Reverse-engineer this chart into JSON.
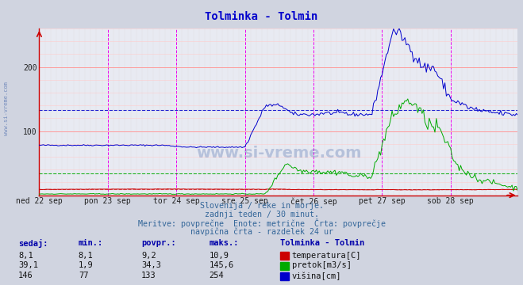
{
  "title": "Tolminka - Tolmin",
  "title_color": "#0000cc",
  "bg_color": "#d0d4e0",
  "plot_bg_color": "#e8eaf2",
  "temp_color": "#cc0000",
  "pretok_color": "#00aa00",
  "visina_color": "#0000cc",
  "temp_avg": 9.2,
  "pretok_avg": 34.3,
  "visina_avg": 133,
  "ylim": [
    0,
    260
  ],
  "xlabel_days": [
    "ned 22 sep",
    "pon 23 sep",
    "tor 24 sep",
    "sre 25 sep",
    "čet 26 sep",
    "pet 27 sep",
    "sob 28 sep"
  ],
  "annotation_text1": "Slovenija / reke in morje.",
  "annotation_text2": "zadnji teden / 30 minut.",
  "annotation_text3": "Meritve: povprečne  Enote: metrične  Črta: povprečje",
  "annotation_text4": "navpična črta - razdelek 24 ur",
  "table_headers": [
    "sedaj:",
    "min.:",
    "povpr.:",
    "maks.:",
    "Tolminka - Tolmin"
  ],
  "table_row1": [
    "8,1",
    "8,1",
    "9,2",
    "10,9",
    "temperatura[C]"
  ],
  "table_row2": [
    "39,1",
    "1,9",
    "34,3",
    "145,6",
    "pretok[m3/s]"
  ],
  "table_row3": [
    "146",
    "77",
    "133",
    "254",
    "višina[cm]"
  ],
  "watermark": "www.si-vreme.com",
  "sidebar_text": "www.si-vreme.com"
}
